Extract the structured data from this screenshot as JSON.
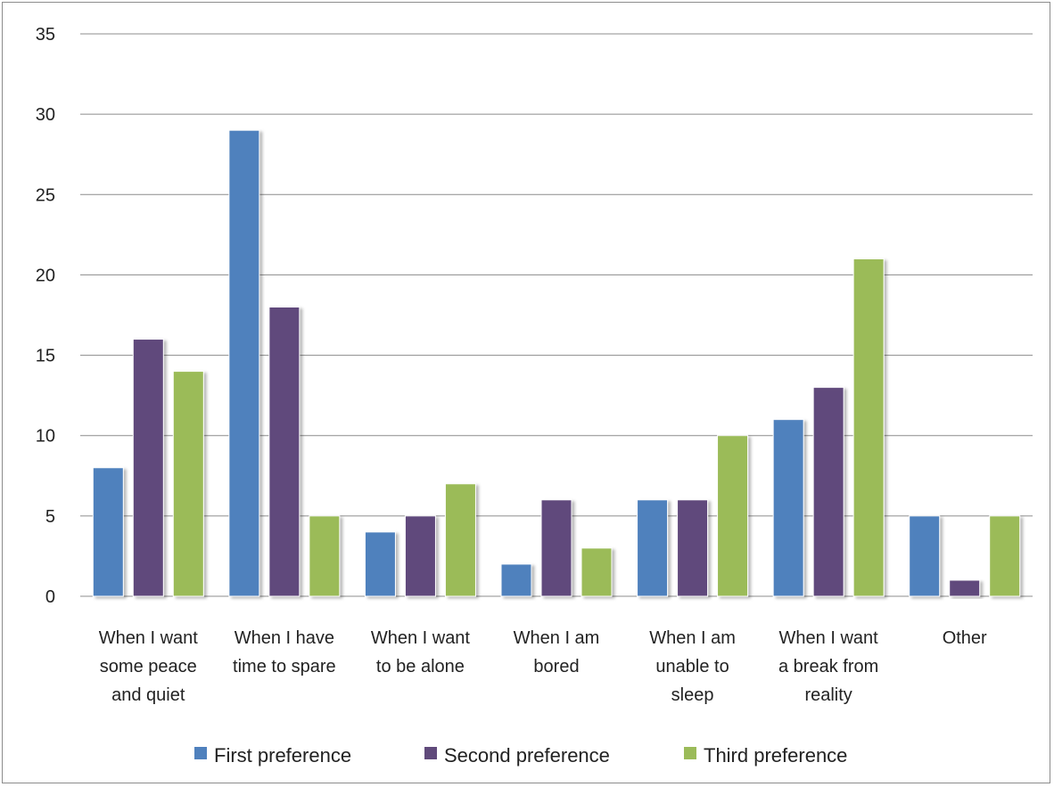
{
  "chart_data": {
    "type": "bar",
    "categories": [
      [
        "When I want",
        "some peace",
        "and quiet"
      ],
      [
        "When I have",
        "time to spare"
      ],
      [
        "When I want",
        "to be alone"
      ],
      [
        "When I am",
        "bored"
      ],
      [
        "When I am",
        "unable to",
        "sleep"
      ],
      [
        "When I want",
        "a break from",
        "reality"
      ],
      [
        "Other"
      ]
    ],
    "series": [
      {
        "name": "First preference",
        "color": "#4f81bd",
        "values": [
          8,
          29,
          4,
          2,
          6,
          11,
          5
        ]
      },
      {
        "name": "Second preference",
        "color": "#604a7b",
        "values": [
          16,
          18,
          5,
          6,
          6,
          13,
          1
        ]
      },
      {
        "name": "Third preference",
        "color": "#9bbb59",
        "values": [
          14,
          5,
          7,
          3,
          10,
          21,
          5
        ]
      }
    ],
    "y_ticks": [
      "0",
      "5",
      "10",
      "15",
      "20",
      "25",
      "30",
      "35"
    ],
    "ylim": [
      0,
      35
    ],
    "grid": true,
    "legend_position": "bottom"
  }
}
